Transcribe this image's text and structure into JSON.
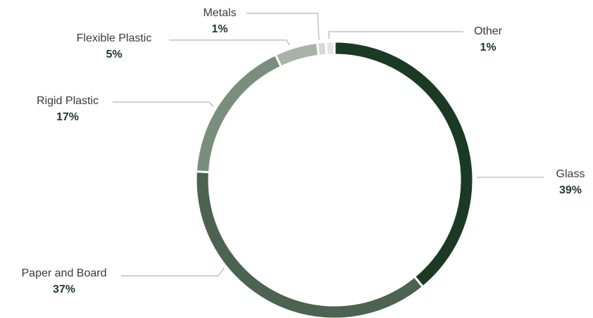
{
  "chart_data": {
    "type": "pie",
    "categories": [
      "Glass",
      "Paper and Board",
      "Rigid Plastic",
      "Flexible Plastic",
      "Metals",
      "Other"
    ],
    "values": [
      39,
      37,
      17,
      5,
      1,
      1
    ],
    "value_labels": [
      "39%",
      "37%",
      "17%",
      "5%",
      "1%",
      "1%"
    ],
    "colors": [
      "#1b3a24",
      "#4b6350",
      "#7a8e7d",
      "#a7b3a9",
      "#d4d9d5",
      "#e3e6e3"
    ],
    "donut": true,
    "start": "top",
    "direction": "clockwise"
  }
}
